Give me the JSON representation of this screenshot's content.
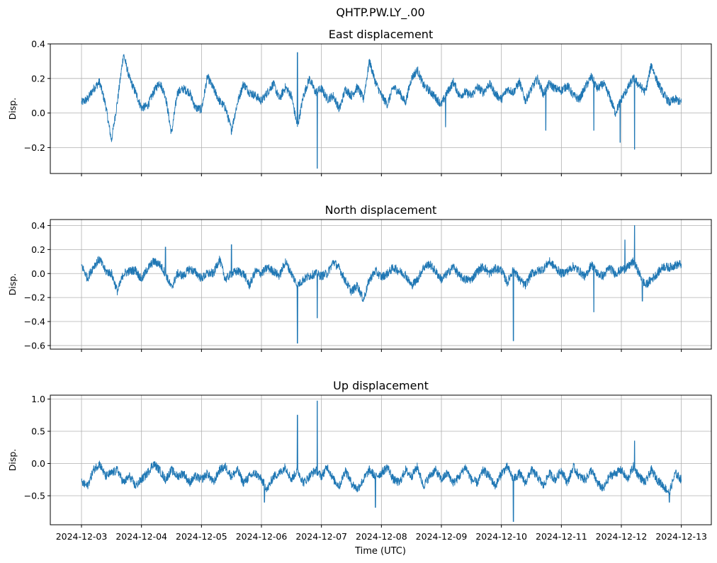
{
  "figure": {
    "suptitle": "QHTP.PW.LY_.00",
    "xlabel": "Time (UTC)",
    "ylabel": "Disp."
  },
  "colors": {
    "line": "#1f77b4",
    "grid": "#b0b0b0",
    "axes": "#000000"
  },
  "chart_data": [
    {
      "type": "line",
      "title": "East displacement",
      "ylabel": "Disp.",
      "xlabel": "",
      "x_ticks": [
        "2024-12-03",
        "2024-12-04",
        "2024-12-05",
        "2024-12-06",
        "2024-12-07",
        "2024-12-08",
        "2024-12-09",
        "2024-12-10",
        "2024-12-11",
        "2024-12-12",
        "2024-12-13"
      ],
      "y_ticks": [
        0.4,
        0.2,
        0.0,
        -0.2
      ],
      "y_tick_labels": [
        "0.4",
        "0.2",
        "0.0",
        "−0.2"
      ],
      "ylim": [
        -0.35,
        0.4
      ],
      "xlim_days": [
        -0.52,
        10.5
      ],
      "grid": true,
      "series": [
        {
          "name": "East",
          "x_days": [
            0,
            0.1,
            0.2,
            0.3,
            0.4,
            0.5,
            0.6,
            0.7,
            0.8,
            0.9,
            1.0,
            1.1,
            1.2,
            1.3,
            1.4,
            1.5,
            1.6,
            1.7,
            1.8,
            1.9,
            2.0,
            2.1,
            2.2,
            2.3,
            2.4,
            2.5,
            2.6,
            2.7,
            2.8,
            2.9,
            3.0,
            3.1,
            3.2,
            3.3,
            3.4,
            3.5,
            3.6,
            3.7,
            3.8,
            3.9,
            4.0,
            4.1,
            4.2,
            4.3,
            4.4,
            4.5,
            4.6,
            4.7,
            4.8,
            4.9,
            5.0,
            5.1,
            5.2,
            5.3,
            5.4,
            5.5,
            5.6,
            5.7,
            5.8,
            5.9,
            6.0,
            6.1,
            6.2,
            6.3,
            6.4,
            6.5,
            6.6,
            6.7,
            6.8,
            6.9,
            7.0,
            7.1,
            7.2,
            7.3,
            7.4,
            7.5,
            7.6,
            7.7,
            7.8,
            7.9,
            8.0,
            8.1,
            8.2,
            8.3,
            8.4,
            8.5,
            8.6,
            8.7,
            8.8,
            8.9,
            9.0,
            9.1,
            9.2,
            9.3,
            9.4,
            9.5,
            9.6,
            9.7,
            9.8,
            9.9,
            10.0
          ],
          "values": [
            0.06,
            0.08,
            0.14,
            0.18,
            0.05,
            -0.16,
            0.07,
            0.34,
            0.2,
            0.12,
            0.03,
            0.04,
            0.12,
            0.18,
            0.1,
            -0.12,
            0.12,
            0.14,
            0.12,
            0.03,
            0.02,
            0.21,
            0.14,
            0.07,
            0.03,
            -0.1,
            0.06,
            0.17,
            0.12,
            0.1,
            0.07,
            0.12,
            0.17,
            0.08,
            0.15,
            0.1,
            -0.08,
            0.1,
            0.2,
            0.12,
            0.14,
            0.08,
            0.1,
            0.02,
            0.14,
            0.1,
            0.15,
            0.08,
            0.3,
            0.18,
            0.1,
            0.05,
            0.15,
            0.12,
            0.06,
            0.2,
            0.25,
            0.16,
            0.13,
            0.09,
            0.05,
            0.12,
            0.18,
            0.1,
            0.12,
            0.1,
            0.15,
            0.12,
            0.17,
            0.11,
            0.08,
            0.14,
            0.12,
            0.18,
            0.07,
            0.14,
            0.2,
            0.11,
            0.17,
            0.14,
            0.13,
            0.16,
            0.1,
            0.08,
            0.15,
            0.21,
            0.14,
            0.17,
            0.1,
            0.0,
            0.08,
            0.14,
            0.2,
            0.16,
            0.12,
            0.28,
            0.18,
            0.11,
            0.06,
            0.08,
            0.06
          ],
          "spikes": [
            {
              "x": 3.6,
              "v": 0.35
            },
            {
              "x": 3.93,
              "v": -0.32
            },
            {
              "x": 6.07,
              "v": -0.08
            },
            {
              "x": 7.74,
              "v": -0.1
            },
            {
              "x": 8.54,
              "v": -0.1
            },
            {
              "x": 8.98,
              "v": -0.17
            },
            {
              "x": 9.22,
              "v": -0.21
            }
          ]
        }
      ]
    },
    {
      "type": "line",
      "title": "North displacement",
      "ylabel": "Disp.",
      "xlabel": "",
      "x_ticks": [
        "2024-12-03",
        "2024-12-04",
        "2024-12-05",
        "2024-12-06",
        "2024-12-07",
        "2024-12-08",
        "2024-12-09",
        "2024-12-10",
        "2024-12-11",
        "2024-12-12",
        "2024-12-13"
      ],
      "y_ticks": [
        0.4,
        0.2,
        0.0,
        -0.2,
        -0.4,
        -0.6
      ],
      "y_tick_labels": [
        "0.4",
        "0.2",
        "0.0",
        "−0.2",
        "−0.4",
        "−0.6"
      ],
      "ylim": [
        -0.63,
        0.45
      ],
      "xlim_days": [
        -0.52,
        10.5
      ],
      "grid": true,
      "series": [
        {
          "name": "North",
          "x_days": [
            0,
            0.1,
            0.2,
            0.3,
            0.4,
            0.5,
            0.6,
            0.7,
            0.8,
            0.9,
            1.0,
            1.1,
            1.2,
            1.3,
            1.4,
            1.5,
            1.6,
            1.7,
            1.8,
            1.9,
            2.0,
            2.1,
            2.2,
            2.3,
            2.4,
            2.5,
            2.6,
            2.7,
            2.8,
            2.9,
            3.0,
            3.1,
            3.2,
            3.3,
            3.4,
            3.5,
            3.6,
            3.7,
            3.8,
            3.9,
            4.0,
            4.1,
            4.2,
            4.3,
            4.4,
            4.5,
            4.6,
            4.7,
            4.8,
            4.9,
            5.0,
            5.1,
            5.2,
            5.3,
            5.4,
            5.5,
            5.6,
            5.7,
            5.8,
            5.9,
            6.0,
            6.1,
            6.2,
            6.3,
            6.4,
            6.5,
            6.6,
            6.7,
            6.8,
            6.9,
            7.0,
            7.1,
            7.2,
            7.3,
            7.4,
            7.5,
            7.6,
            7.7,
            7.8,
            7.9,
            8.0,
            8.1,
            8.2,
            8.3,
            8.4,
            8.5,
            8.6,
            8.7,
            8.8,
            8.9,
            9.0,
            9.1,
            9.2,
            9.3,
            9.4,
            9.5,
            9.6,
            9.7,
            9.8,
            9.9,
            10.0
          ],
          "values": [
            0.07,
            -0.04,
            0.06,
            0.12,
            0.02,
            0.0,
            -0.15,
            0.0,
            0.02,
            0.03,
            -0.05,
            0.04,
            0.1,
            0.08,
            0.0,
            -0.12,
            0.0,
            -0.02,
            0.04,
            0.01,
            -0.04,
            0.0,
            0.0,
            0.12,
            -0.05,
            0.0,
            0.02,
            0.0,
            -0.1,
            0.02,
            0.0,
            0.05,
            0.02,
            -0.02,
            0.1,
            0.0,
            -0.1,
            -0.05,
            -0.02,
            0.0,
            -0.02,
            0.0,
            0.1,
            0.04,
            -0.06,
            -0.15,
            -0.1,
            -0.22,
            -0.05,
            0.02,
            -0.03,
            0.0,
            0.05,
            0.02,
            -0.01,
            -0.1,
            -0.05,
            0.05,
            0.08,
            0.02,
            -0.05,
            0.0,
            0.06,
            -0.02,
            -0.05,
            -0.05,
            0.02,
            0.06,
            0.0,
            0.04,
            0.03,
            -0.08,
            0.04,
            -0.05,
            -0.1,
            0.0,
            0.02,
            0.04,
            0.1,
            0.05,
            0.0,
            0.02,
            0.06,
            0.02,
            -0.03,
            0.08,
            0.0,
            -0.02,
            0.05,
            0.0,
            0.03,
            0.05,
            0.1,
            0.0,
            -0.1,
            -0.05,
            0.0,
            0.06,
            0.05,
            0.07,
            0.08
          ],
          "spikes": [
            {
              "x": 1.4,
              "v": 0.22
            },
            {
              "x": 2.5,
              "v": 0.24
            },
            {
              "x": 3.6,
              "v": -0.58
            },
            {
              "x": 3.93,
              "v": -0.37
            },
            {
              "x": 7.2,
              "v": -0.56
            },
            {
              "x": 8.54,
              "v": -0.32
            },
            {
              "x": 9.06,
              "v": 0.28
            },
            {
              "x": 9.22,
              "v": 0.4
            },
            {
              "x": 9.35,
              "v": -0.23
            }
          ]
        }
      ]
    },
    {
      "type": "line",
      "title": "Up displacement",
      "ylabel": "Disp.",
      "xlabel": "Time (UTC)",
      "x_ticks": [
        "2024-12-03",
        "2024-12-04",
        "2024-12-05",
        "2024-12-06",
        "2024-12-07",
        "2024-12-08",
        "2024-12-09",
        "2024-12-10",
        "2024-12-11",
        "2024-12-12",
        "2024-12-13"
      ],
      "y_ticks": [
        1.0,
        0.5,
        0.0,
        -0.5
      ],
      "y_tick_labels": [
        "1.0",
        "0.5",
        "0.0",
        "−0.5"
      ],
      "ylim": [
        -0.95,
        1.06
      ],
      "xlim_days": [
        -0.52,
        10.5
      ],
      "grid": true,
      "series": [
        {
          "name": "Up",
          "x_days": [
            0,
            0.1,
            0.2,
            0.3,
            0.4,
            0.5,
            0.6,
            0.7,
            0.8,
            0.9,
            1.0,
            1.1,
            1.2,
            1.3,
            1.4,
            1.5,
            1.6,
            1.7,
            1.8,
            1.9,
            2.0,
            2.1,
            2.2,
            2.3,
            2.4,
            2.5,
            2.6,
            2.7,
            2.8,
            2.9,
            3.0,
            3.1,
            3.2,
            3.3,
            3.4,
            3.5,
            3.6,
            3.7,
            3.8,
            3.9,
            4.0,
            4.1,
            4.2,
            4.3,
            4.4,
            4.5,
            4.6,
            4.7,
            4.8,
            4.9,
            5.0,
            5.1,
            5.2,
            5.3,
            5.4,
            5.5,
            5.6,
            5.7,
            5.8,
            5.9,
            6.0,
            6.1,
            6.2,
            6.3,
            6.4,
            6.5,
            6.6,
            6.7,
            6.8,
            6.9,
            7.0,
            7.1,
            7.2,
            7.3,
            7.4,
            7.5,
            7.6,
            7.7,
            7.8,
            7.9,
            8.0,
            8.1,
            8.2,
            8.3,
            8.4,
            8.5,
            8.6,
            8.7,
            8.8,
            8.9,
            9.0,
            9.1,
            9.2,
            9.3,
            9.4,
            9.5,
            9.6,
            9.7,
            9.8,
            9.9,
            10.0
          ],
          "values": [
            -0.3,
            -0.35,
            -0.1,
            0.0,
            -0.2,
            -0.15,
            -0.1,
            -0.3,
            -0.2,
            -0.35,
            -0.25,
            -0.15,
            0.0,
            -0.1,
            -0.25,
            -0.1,
            -0.2,
            -0.15,
            -0.3,
            -0.2,
            -0.25,
            -0.15,
            -0.3,
            -0.1,
            -0.05,
            -0.2,
            -0.1,
            -0.3,
            -0.2,
            -0.15,
            -0.25,
            -0.4,
            -0.2,
            -0.15,
            -0.05,
            -0.25,
            -0.1,
            -0.3,
            -0.2,
            -0.1,
            -0.2,
            -0.05,
            -0.25,
            -0.35,
            -0.1,
            -0.3,
            -0.4,
            -0.25,
            -0.1,
            -0.2,
            -0.15,
            -0.05,
            -0.25,
            -0.3,
            -0.1,
            -0.2,
            -0.05,
            -0.35,
            -0.2,
            -0.1,
            -0.25,
            -0.15,
            -0.3,
            -0.2,
            -0.05,
            -0.25,
            -0.3,
            -0.1,
            -0.2,
            -0.35,
            -0.15,
            -0.05,
            -0.25,
            -0.15,
            -0.3,
            -0.1,
            -0.2,
            -0.35,
            -0.15,
            -0.25,
            -0.1,
            -0.3,
            -0.05,
            -0.2,
            -0.25,
            -0.1,
            -0.3,
            -0.4,
            -0.2,
            -0.15,
            -0.1,
            -0.25,
            -0.05,
            -0.2,
            -0.3,
            -0.1,
            -0.25,
            -0.35,
            -0.45,
            -0.15,
            -0.25
          ],
          "spikes": [
            {
              "x": 3.6,
              "v": 0.75
            },
            {
              "x": 3.93,
              "v": 0.97
            },
            {
              "x": 3.05,
              "v": -0.6
            },
            {
              "x": 4.9,
              "v": -0.68
            },
            {
              "x": 7.2,
              "v": -0.9
            },
            {
              "x": 9.22,
              "v": 0.35
            },
            {
              "x": 9.8,
              "v": -0.6
            }
          ]
        }
      ]
    }
  ]
}
